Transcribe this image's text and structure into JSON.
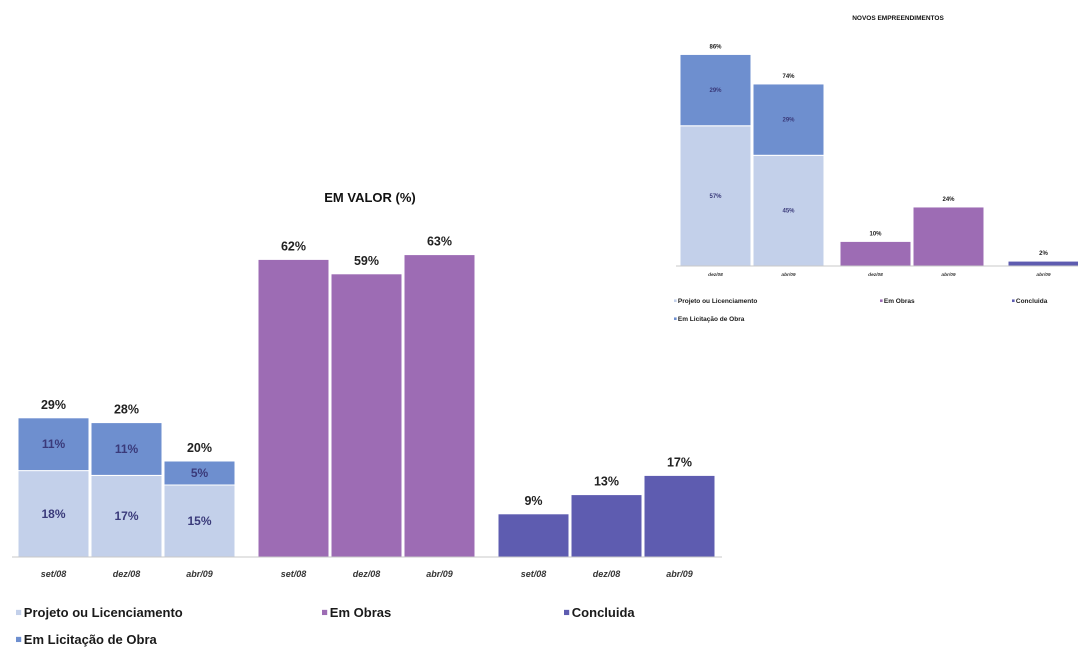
{
  "colors": {
    "projeto": "#c3d0ea",
    "licitacao": "#6e8fcf",
    "obras": "#9d6cb4",
    "concluida": "#5e5cb0"
  },
  "chart_data": [
    {
      "type": "bar",
      "title": "EM VALOR (%)",
      "group_ticks": [
        "set/08",
        "dez/08",
        "abr/09",
        "set/08",
        "dez/08",
        "abr/09",
        "set/08",
        "dez/08",
        "abr/09"
      ],
      "groups": [
        {
          "name": "projeto-licitacao",
          "stacked": true,
          "categories": [
            "set/08",
            "dez/08",
            "abr/09"
          ],
          "series": [
            {
              "name": "Projeto ou Licenciamento",
              "color": "projeto",
              "values": [
                18,
                17,
                15
              ],
              "labels": [
                "18%",
                "17%",
                "15%"
              ]
            },
            {
              "name": "Em Licitação de Obra",
              "color": "licitacao",
              "values": [
                11,
                11,
                5
              ],
              "labels": [
                "11%",
                "11%",
                "5%"
              ]
            }
          ],
          "totals": [
            "29%",
            "28%",
            "20%"
          ]
        },
        {
          "name": "em-obras",
          "categories": [
            "set/08",
            "dez/08",
            "abr/09"
          ],
          "series": [
            {
              "name": "Em Obras",
              "color": "obras",
              "values": [
                62,
                59,
                63
              ],
              "labels": [
                "62%",
                "59%",
                "63%"
              ]
            }
          ]
        },
        {
          "name": "concluida",
          "categories": [
            "set/08",
            "dez/08",
            "abr/09"
          ],
          "series": [
            {
              "name": "Concluída",
              "color": "concluida",
              "values": [
                9,
                13,
                17
              ],
              "labels": [
                "9%",
                "13%",
                "17%"
              ]
            }
          ]
        }
      ],
      "legend": [
        {
          "label": "Projeto ou Licenciamento",
          "color": "projeto"
        },
        {
          "label": "Em Obras",
          "color": "obras"
        },
        {
          "label": "Concluida",
          "color": "concluida"
        },
        {
          "label": "Em Licitação de Obra",
          "color": "licitacao"
        }
      ],
      "legend_position": "bottom",
      "grid": false
    },
    {
      "type": "bar",
      "title": "NOVOS EMPREENDIMENTOS",
      "groups": [
        {
          "name": "projeto-licitacao",
          "stacked": true,
          "categories": [
            "dez/08",
            "abr/09"
          ],
          "series": [
            {
              "name": "Projeto ou Licenciamento",
              "color": "projeto",
              "values": [
                57,
                45
              ],
              "labels": [
                "57%",
                "45%"
              ]
            },
            {
              "name": "Em Licitação de Obra",
              "color": "licitacao",
              "values": [
                29,
                29
              ],
              "labels": [
                "29%",
                "29%"
              ]
            }
          ],
          "totals": [
            "86%",
            "74%"
          ]
        },
        {
          "name": "em-obras",
          "categories": [
            "dez/08",
            "abr/09"
          ],
          "series": [
            {
              "name": "Em Obras",
              "color": "obras",
              "values": [
                10,
                24
              ],
              "labels": [
                "10%",
                "24%"
              ]
            }
          ]
        },
        {
          "name": "concluida",
          "categories": [
            "abr/09"
          ],
          "series": [
            {
              "name": "Concluída",
              "color": "concluida",
              "values": [
                2
              ],
              "labels": [
                "2%"
              ]
            }
          ]
        }
      ],
      "legend": [
        {
          "label": "Projeto ou Licenciamento",
          "color": "projeto"
        },
        {
          "label": "Em Obras",
          "color": "obras"
        },
        {
          "label": "Concluida",
          "color": "concluida"
        },
        {
          "label": "Em Licitação de Obra",
          "color": "licitacao"
        }
      ],
      "legend_position": "bottom",
      "grid": false
    }
  ]
}
